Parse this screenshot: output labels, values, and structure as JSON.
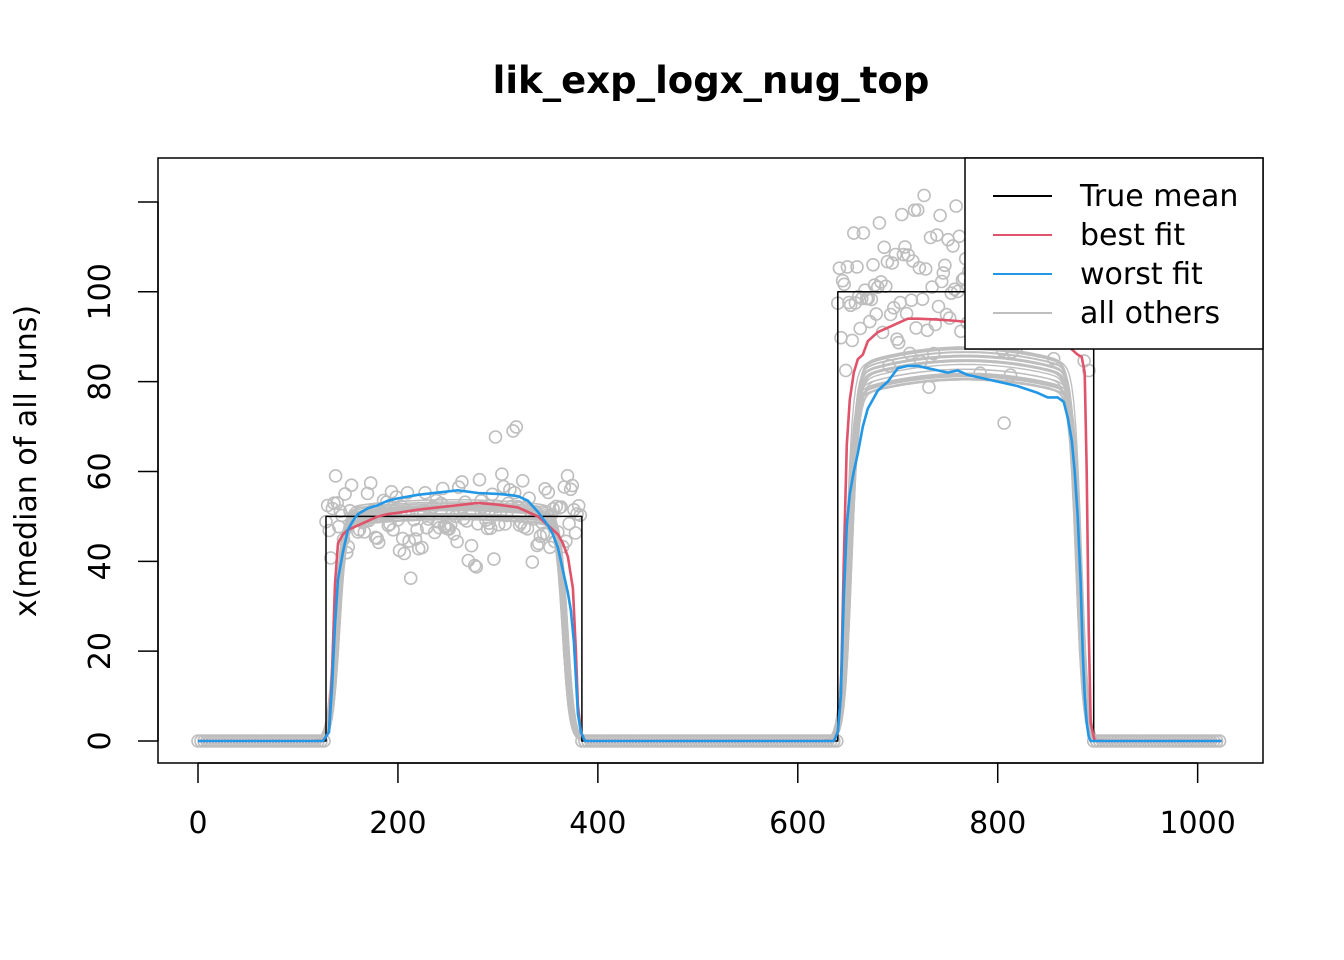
{
  "chart_data": {
    "type": "line",
    "title": "lik_exp_logx_nug_top",
    "xlabel": "",
    "ylabel": "x(median of all runs)",
    "xlim": [
      -40,
      1065
    ],
    "ylim": [
      -5,
      135
    ],
    "x_ticks": [
      0,
      200,
      400,
      600,
      800,
      1000
    ],
    "x_tick_labels": [
      "0",
      "200",
      "400",
      "600",
      "800",
      "1000"
    ],
    "y_ticks": [
      0,
      20,
      40,
      60,
      80,
      100,
      120
    ],
    "y_tick_labels": [
      "0",
      "20",
      "40",
      "60",
      "80",
      "100",
      ""
    ],
    "legend_position": "top-right",
    "grid": false,
    "series": [
      {
        "name": "True mean",
        "color": "#000000",
        "x": [
          0,
          128,
          128,
          384,
          384,
          640,
          640,
          896,
          896,
          1024
        ],
        "y": [
          0,
          0,
          50,
          50,
          0,
          0,
          100,
          100,
          0,
          0
        ]
      },
      {
        "name": "best fit",
        "color": "#DF536B",
        "x": [
          0,
          125,
          131,
          134,
          137,
          140,
          145,
          150,
          160,
          170,
          180,
          190,
          200,
          220,
          240,
          260,
          280,
          300,
          320,
          330,
          340,
          350,
          360,
          365,
          370,
          375,
          378,
          380,
          383,
          387,
          400,
          500,
          636,
          640,
          643,
          646,
          649,
          652,
          656,
          660,
          665,
          670,
          675,
          680,
          690,
          700,
          710,
          720,
          740,
          760,
          780,
          800,
          820,
          840,
          860,
          870,
          875,
          880,
          884,
          887,
          889,
          891,
          893,
          897,
          910,
          1024
        ],
        "y": [
          0,
          0,
          2,
          15,
          35,
          44,
          46,
          47,
          48,
          49,
          50,
          50.5,
          50.8,
          51.5,
          52,
          52.5,
          53,
          52.6,
          52,
          51,
          50,
          48,
          46,
          44,
          41,
          34,
          20,
          8,
          2,
          0,
          0,
          0,
          0,
          2,
          10,
          40,
          66,
          76,
          82,
          85,
          86,
          89,
          90,
          91,
          92,
          93,
          94,
          94,
          93.8,
          93.5,
          93,
          92,
          91,
          90,
          89,
          88,
          87,
          86,
          85.5,
          82,
          60,
          25,
          4,
          0,
          0,
          0
        ]
      },
      {
        "name": "worst fit",
        "color": "#2297E6",
        "x": [
          0,
          125,
          131,
          134,
          137,
          140,
          145,
          150,
          155,
          160,
          170,
          180,
          190,
          200,
          220,
          240,
          260,
          280,
          300,
          310,
          320,
          330,
          340,
          350,
          355,
          360,
          365,
          370,
          373,
          376,
          378,
          380,
          383,
          387,
          400,
          500,
          636,
          640,
          643,
          646,
          649,
          652,
          656,
          660,
          665,
          670,
          675,
          680,
          690,
          700,
          710,
          720,
          730,
          740,
          750,
          760,
          770,
          780,
          800,
          820,
          840,
          850,
          860,
          866,
          870,
          874,
          877,
          880,
          883,
          885,
          887,
          889,
          891,
          893,
          897,
          910,
          1024
        ],
        "y": [
          0,
          0,
          2,
          12,
          26,
          36,
          42,
          47,
          49,
          50.5,
          51.8,
          52.5,
          53.5,
          54,
          54.8,
          55.3,
          55.8,
          55.2,
          55,
          54.8,
          54.5,
          53.5,
          51,
          48,
          46,
          43,
          38,
          33,
          29,
          22,
          14,
          6,
          2,
          0,
          0,
          0,
          0,
          2,
          10,
          32,
          48,
          55,
          60,
          64,
          70,
          74,
          76,
          78,
          80,
          83,
          83.5,
          83.5,
          83,
          82.5,
          82,
          82.5,
          81.5,
          81,
          80,
          79,
          77.5,
          76.5,
          76.5,
          75.5,
          72,
          67,
          60,
          50,
          35,
          20,
          10,
          4,
          1,
          0,
          0,
          0,
          0
        ]
      },
      {
        "name": "all others",
        "color": "#BEBEBE",
        "note_free": true,
        "x": [
          0,
          128,
          384,
          640,
          896,
          1024
        ],
        "y": [
          0,
          0,
          0,
          0,
          0,
          0
        ]
      }
    ],
    "points": {
      "color": "#BEBEBE",
      "segments": [
        {
          "x_start": 0,
          "x_end": 128,
          "y_center": 0,
          "spread": 0
        },
        {
          "x_start": 128,
          "x_end": 384,
          "y_center": 50,
          "spread": 4.5
        },
        {
          "x_start": 384,
          "x_end": 640,
          "y_center": 0,
          "spread": 0
        },
        {
          "x_start": 640,
          "x_end": 896,
          "y_center": 100,
          "spread": 8
        },
        {
          "x_start": 896,
          "x_end": 1024,
          "y_center": 0,
          "spread": 0
        }
      ]
    }
  }
}
